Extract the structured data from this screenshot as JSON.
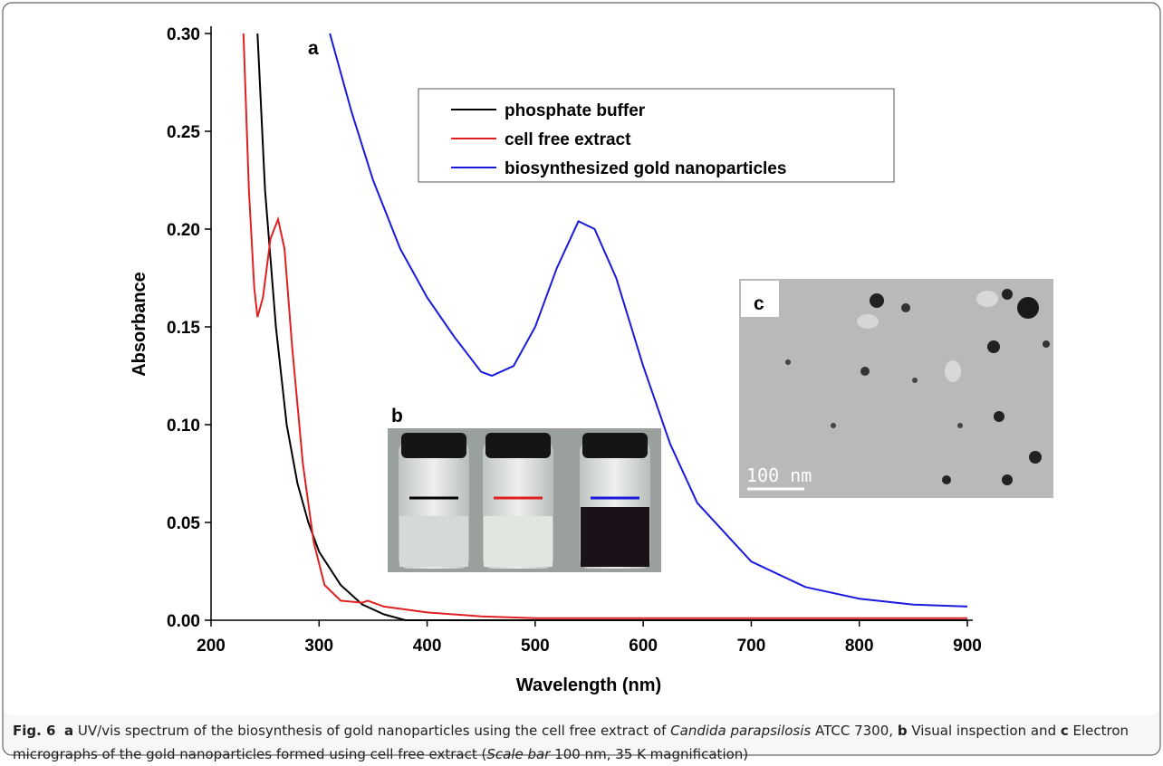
{
  "chart_data": {
    "type": "line",
    "panel_label": "a",
    "x_label": "Wavelength (nm)",
    "y_label": "Absorbance",
    "xlim": [
      200,
      900
    ],
    "ylim": [
      0,
      0.3
    ],
    "xticks": [
      200,
      300,
      400,
      500,
      600,
      700,
      800,
      900
    ],
    "yticks": [
      {
        "value": 0,
        "label": "0.00"
      },
      {
        "value": 0.05,
        "label": "0.05"
      },
      {
        "value": 0.1,
        "label": "0.10"
      },
      {
        "value": 0.15,
        "label": "0.15"
      },
      {
        "value": 0.2,
        "label": "0.20"
      },
      {
        "value": 0.25,
        "label": "0.25"
      },
      {
        "value": 0.3,
        "label": "0.30"
      }
    ],
    "series": [
      {
        "name": "phosphate buffer",
        "color": "#000000",
        "x": [
          243,
          250,
          260,
          270,
          280,
          290,
          300,
          320,
          340,
          360,
          380,
          400,
          500,
          600,
          700,
          800,
          900
        ],
        "values": [
          0.3,
          0.22,
          0.15,
          0.1,
          0.07,
          0.05,
          0.035,
          0.018,
          0.008,
          0.003,
          0,
          0,
          0,
          0,
          0,
          0,
          0
        ]
      },
      {
        "name": "cell free extract",
        "color": "#e02020",
        "x": [
          230,
          235,
          240,
          243,
          248,
          255,
          262,
          268,
          275,
          285,
          295,
          305,
          320,
          340,
          345,
          360,
          400,
          450,
          500,
          600,
          700,
          800,
          900
        ],
        "values": [
          0.3,
          0.22,
          0.17,
          0.155,
          0.165,
          0.195,
          0.205,
          0.19,
          0.14,
          0.08,
          0.04,
          0.018,
          0.01,
          0.009,
          0.01,
          0.007,
          0.004,
          0.002,
          0.001,
          0.001,
          0.001,
          0.001,
          0.001
        ]
      },
      {
        "name": "biosynthesized gold nanoparticles",
        "color": "#1a1adc",
        "x": [
          310,
          330,
          350,
          375,
          400,
          425,
          450,
          460,
          480,
          500,
          520,
          540,
          555,
          575,
          600,
          625,
          650,
          700,
          750,
          800,
          850,
          900
        ],
        "values": [
          0.3,
          0.26,
          0.225,
          0.19,
          0.165,
          0.145,
          0.127,
          0.125,
          0.13,
          0.15,
          0.18,
          0.204,
          0.2,
          0.175,
          0.13,
          0.09,
          0.06,
          0.03,
          0.017,
          0.011,
          0.008,
          0.007
        ]
      }
    ],
    "legend": "top-center",
    "insets": [
      {
        "label": "b"
      },
      {
        "label": "c",
        "scale_bar": "100 nm"
      }
    ]
  },
  "caption": [
    {
      "text": "Fig. 6",
      "bold": true
    },
    {
      "text": "  "
    },
    {
      "text": "a",
      "bold": true
    },
    {
      "text": " UV/vis spectrum of the biosynthesis of gold nanoparticles using the cell free extract of "
    },
    {
      "text": "Candida parapsilosis",
      "italic": true
    },
    {
      "text": " ATCC 7300, "
    },
    {
      "text": "b",
      "bold": true
    },
    {
      "text": " Visual inspection and "
    },
    {
      "text": "c",
      "bold": true
    },
    {
      "text": " Electron micrographs of the gold nanoparticles formed using cell free extract ("
    },
    {
      "text": "Scale bar",
      "italic": true
    },
    {
      "text": " 100 nm, 35 K magnification)"
    }
  ]
}
